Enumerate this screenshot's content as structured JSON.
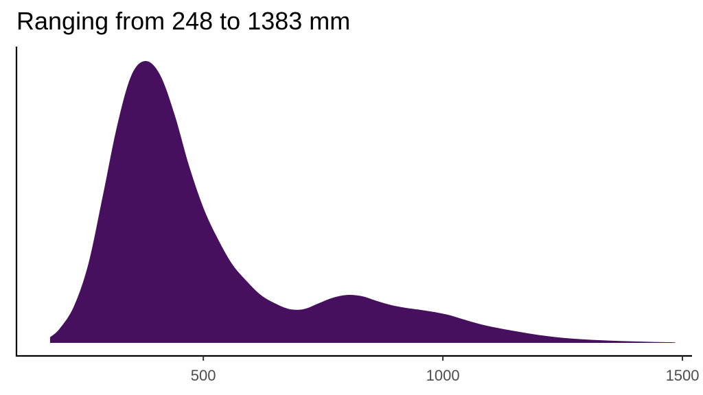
{
  "chart_data": {
    "type": "area",
    "subtype": "density",
    "title": "Ranging from 248 to 1383 mm",
    "xlabel": "",
    "ylabel": "",
    "xlim": [
      110,
      1520
    ],
    "ylim": [
      0,
      1.0
    ],
    "x_ticks": [
      500,
      1000,
      1500
    ],
    "x_tick_labels": [
      "500",
      "1000",
      "1500"
    ],
    "y_axis_ticks_shown": false,
    "grid": false,
    "legend": "none",
    "fill_color": "#46105e",
    "series": [
      {
        "x": [
          180,
          200,
          230,
          260,
          290,
          320,
          350,
          380,
          410,
          440,
          470,
          500,
          530,
          560,
          590,
          620,
          650,
          680,
          710,
          740,
          770,
          800,
          830,
          860,
          890,
          920,
          950,
          980,
          1010,
          1040,
          1070,
          1100,
          1150,
          1200,
          1250,
          1300,
          1350,
          1400,
          1450,
          1485
        ],
        "y": [
          0.02,
          0.05,
          0.13,
          0.28,
          0.52,
          0.77,
          0.95,
          1.0,
          0.95,
          0.81,
          0.63,
          0.48,
          0.37,
          0.28,
          0.22,
          0.17,
          0.14,
          0.12,
          0.12,
          0.14,
          0.16,
          0.17,
          0.166,
          0.15,
          0.135,
          0.125,
          0.118,
          0.11,
          0.1,
          0.085,
          0.07,
          0.058,
          0.042,
          0.028,
          0.018,
          0.012,
          0.008,
          0.005,
          0.003,
          0.002
        ]
      }
    ]
  }
}
